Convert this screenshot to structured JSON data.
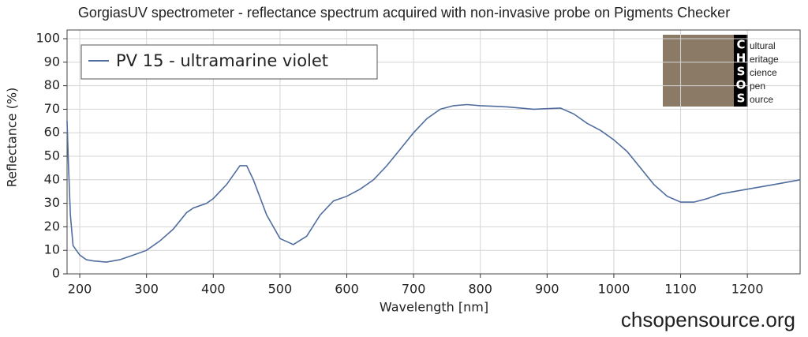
{
  "chart_data": {
    "type": "line",
    "title": "GorgiasUV spectrometer - reflectance spectrum acquired with non-invasive probe on Pigments Checker",
    "x_label": "Wavelength [nm]",
    "y_label": "Reflectance (%)",
    "x": [
      181,
      183,
      186,
      190,
      195,
      200,
      210,
      220,
      240,
      260,
      280,
      300,
      320,
      340,
      360,
      370,
      390,
      400,
      420,
      440,
      450,
      460,
      480,
      500,
      520,
      540,
      560,
      580,
      600,
      620,
      640,
      660,
      680,
      700,
      720,
      740,
      760,
      780,
      800,
      840,
      880,
      920,
      940,
      960,
      980,
      1000,
      1020,
      1040,
      1060,
      1080,
      1100,
      1120,
      1140,
      1160,
      1180,
      1200,
      1240,
      1279
    ],
    "series": [
      {
        "name": "PV 15 - ultramarine violet",
        "color": "#4f6d9e",
        "values": [
          65,
          47,
          25,
          12,
          10,
          8,
          6,
          5.5,
          5,
          6,
          8,
          10,
          14,
          19,
          26,
          28,
          30,
          32,
          38,
          46,
          46,
          40,
          25,
          15,
          12.5,
          16,
          25,
          31,
          33,
          36,
          40,
          46,
          53,
          60,
          66,
          70,
          71.5,
          72,
          71.5,
          71,
          70,
          70.5,
          68,
          64,
          61,
          57,
          52,
          45,
          38,
          33,
          30.5,
          30.5,
          32,
          34,
          35,
          36,
          38,
          40
        ]
      }
    ],
    "xlim": [
      181,
      1279
    ],
    "ylim": [
      0,
      103.7
    ],
    "xticks": [
      200,
      300,
      400,
      500,
      600,
      700,
      800,
      900,
      1000,
      1100,
      1200
    ],
    "yticks": [
      0,
      10,
      20,
      30,
      40,
      50,
      60,
      70,
      80,
      90,
      100
    ],
    "grid": true,
    "legend": "upper left",
    "logo": {
      "letters": [
        "C",
        "H",
        "S",
        "O",
        "S"
      ],
      "words": [
        "ultural",
        "eritage",
        "cience",
        "pen",
        "ource"
      ]
    },
    "watermark": "chsopensource.org"
  }
}
